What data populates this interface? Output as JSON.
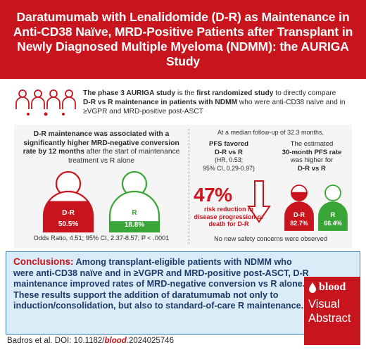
{
  "title": "Daratumumab with Lenalidomide (D-R) as Maintenance in Anti-CD38 Naïve, MRD-Positive Patients after Transplant in Newly Diagnosed Multiple Myeloma (NDMM): the AURIGA Study",
  "intro": {
    "part1": "The phase 3 AURIGA study",
    "part2": " is the ",
    "part3": "first randomized study",
    "part4": " to directly compare ",
    "part5": "D-R vs R maintenance in patients with NDMM",
    "part6": " who were anti-CD38 naïve and in ≥VGPR and MRD-positive post-ASCT",
    "icon": "patients-group-icon"
  },
  "left_panel": {
    "heading_bold": "D-R maintenance was associated with a significantly higher MRD-negative conversion rate by 12 months",
    "heading_rest": " after the start of maintenance treatment vs R alone",
    "dr_label": "D-R",
    "dr_value": "50.5%",
    "dr_fraction": 0.505,
    "r_label": "R",
    "r_value": "18.8%",
    "r_fraction": 0.188,
    "odds": "Odds Ratio, 4.51; 95% CI, 2.37-8.57; P < .0001"
  },
  "right_panel": {
    "followup": "At a median follow-up of 32.3 months,",
    "pfs_line1": "PFS favored",
    "pfs_line2": "D-R vs R",
    "hr_line1": "(HR, 0.53;",
    "hr_line2": "95% CI, 0.29-0.97)",
    "pct": "47%",
    "risk": "risk reduction in disease progression or death for D-R",
    "est_line1": "The estimated",
    "est_line2": "30-month PFS rate",
    "est_line3": "was higher for",
    "est_line4": "D-R vs R",
    "dr_label": "D-R",
    "dr_value": "82.7%",
    "dr_fraction": 0.827,
    "r_label": "R",
    "r_value": "66.4%",
    "r_fraction": 0.664,
    "no_safety": "No new safety concerns were observed"
  },
  "conclusions": {
    "lead": "Conclusions:",
    "text": " Among transplant-eligible patients with NDMM who were anti-CD38 naïve and in ≥VGPR and MRD-positive post-ASCT, D-R maintenance improved rates of MRD-negative conversion vs R alone. These results support the addition of daratumumab not only to induction/consolidation, but also to standard-of-care R maintenance."
  },
  "brand": {
    "logo": "blood",
    "line1": "Visual",
    "line2": "Abstract"
  },
  "citation": {
    "authors": "Badros et al. DOI: 10.1182/",
    "journal": "blood",
    "rest": ".2024025746"
  },
  "colors": {
    "red": "#c8141c",
    "green": "#3aa537",
    "navy": "#1d3b6a",
    "blue_border": "#2b7fc1"
  }
}
